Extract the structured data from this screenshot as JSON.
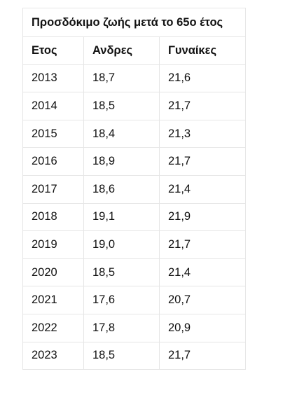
{
  "table": {
    "title": "Προσδόκιμο ζωής μετά το 65ο έτος",
    "headers": [
      "Ετος",
      "Ανδρες",
      "Γυναίκες"
    ],
    "rows": [
      [
        "2013",
        "18,7",
        "21,6"
      ],
      [
        "2014",
        "18,5",
        "21,7"
      ],
      [
        "2015",
        "18,4",
        "21,3"
      ],
      [
        "2016",
        "18,9",
        "21,7"
      ],
      [
        "2017",
        "18,6",
        "21,4"
      ],
      [
        "2018",
        "19,1",
        "21,9"
      ],
      [
        "2019",
        "19,0",
        "21,7"
      ],
      [
        "2020",
        "18,5",
        "21,4"
      ],
      [
        "2021",
        "17,6",
        "20,7"
      ],
      [
        "2022",
        "17,8",
        "20,9"
      ],
      [
        "2023",
        "18,5",
        "21,7"
      ]
    ]
  }
}
